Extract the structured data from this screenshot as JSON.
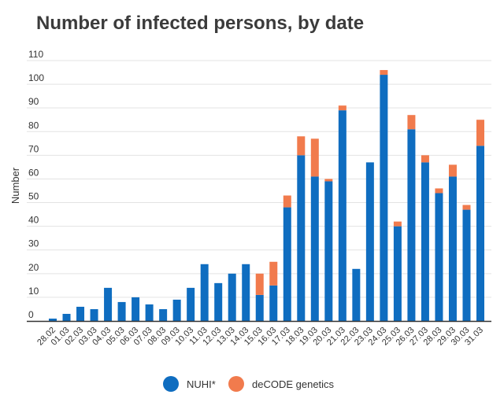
{
  "chart_data": {
    "type": "bar",
    "stacked": true,
    "title": "Number of infected persons, by date",
    "xlabel": "",
    "ylabel": "Number",
    "ylim": [
      0,
      110
    ],
    "yticks": [
      0,
      10,
      20,
      30,
      40,
      50,
      60,
      70,
      80,
      90,
      100,
      110
    ],
    "categories": [
      "28.02",
      "01.03",
      "02.03",
      "03.03",
      "04.03",
      "05.03",
      "06.03",
      "07.03",
      "08.03",
      "09.03",
      "10.03",
      "11.03",
      "12.03",
      "13.03",
      "14.03",
      "15.03",
      "16.03",
      "17.03",
      "18.03",
      "19.03",
      "20.03",
      "21.03",
      "22.03",
      "23.03",
      "24.03",
      "25.03",
      "26.03",
      "27.03",
      "28.03",
      "29.03",
      "30.03",
      "31.03"
    ],
    "series": [
      {
        "name": "NUHI*",
        "color": "#0f6dc0",
        "values": [
          1,
          3,
          6,
          5,
          14,
          8,
          10,
          7,
          5,
          9,
          14,
          24,
          16,
          20,
          24,
          11,
          15,
          48,
          70,
          61,
          59,
          89,
          22,
          67,
          104,
          40,
          81,
          67,
          54,
          61,
          47,
          74
        ]
      },
      {
        "name": "deCODE genetics",
        "color": "#f17b4d",
        "values": [
          0,
          0,
          0,
          0,
          0,
          0,
          0,
          0,
          0,
          0,
          0,
          0,
          0,
          0,
          0,
          9,
          10,
          5,
          8,
          16,
          1,
          2,
          0,
          0,
          2,
          2,
          6,
          3,
          2,
          5,
          2,
          11
        ]
      }
    ],
    "legend_position": "bottom"
  }
}
